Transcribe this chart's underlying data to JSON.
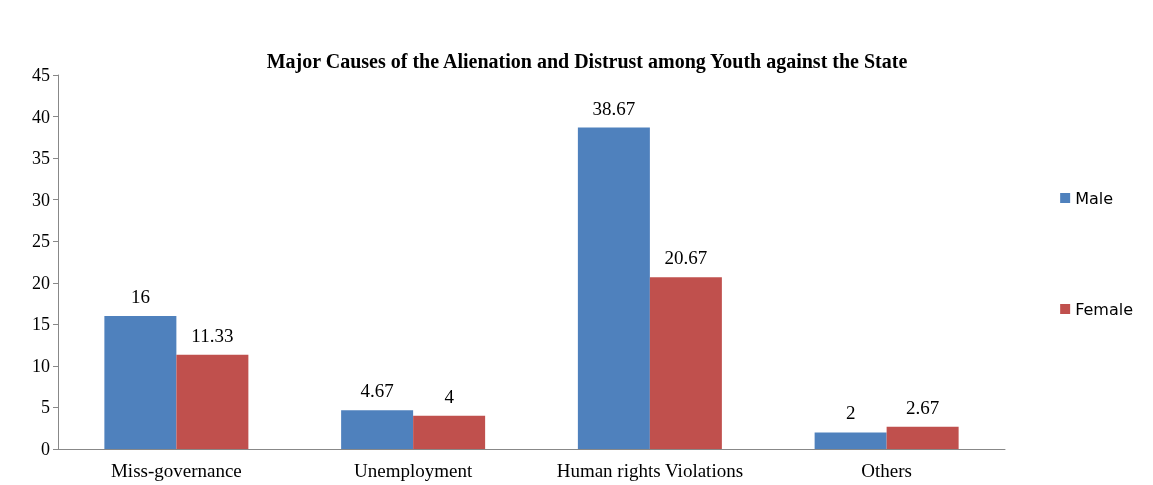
{
  "chart_data": {
    "type": "bar",
    "title": "Major Causes of the Alienation and Distrust among Youth against the State",
    "categories": [
      "Miss-governance",
      "Unemployment",
      "Human rights Violations",
      "Others"
    ],
    "series": [
      {
        "name": "Male",
        "color": "#4f81bd",
        "values": [
          16,
          4.67,
          38.67,
          2
        ]
      },
      {
        "name": "Female",
        "color": "#c0504d",
        "values": [
          11.33,
          4,
          20.67,
          2.67
        ]
      }
    ],
    "ylim": [
      0,
      45
    ],
    "yticks": [
      0,
      5,
      10,
      15,
      20,
      25,
      30,
      35,
      40,
      45
    ],
    "grid": false,
    "legend": "right",
    "data_labels": true
  }
}
